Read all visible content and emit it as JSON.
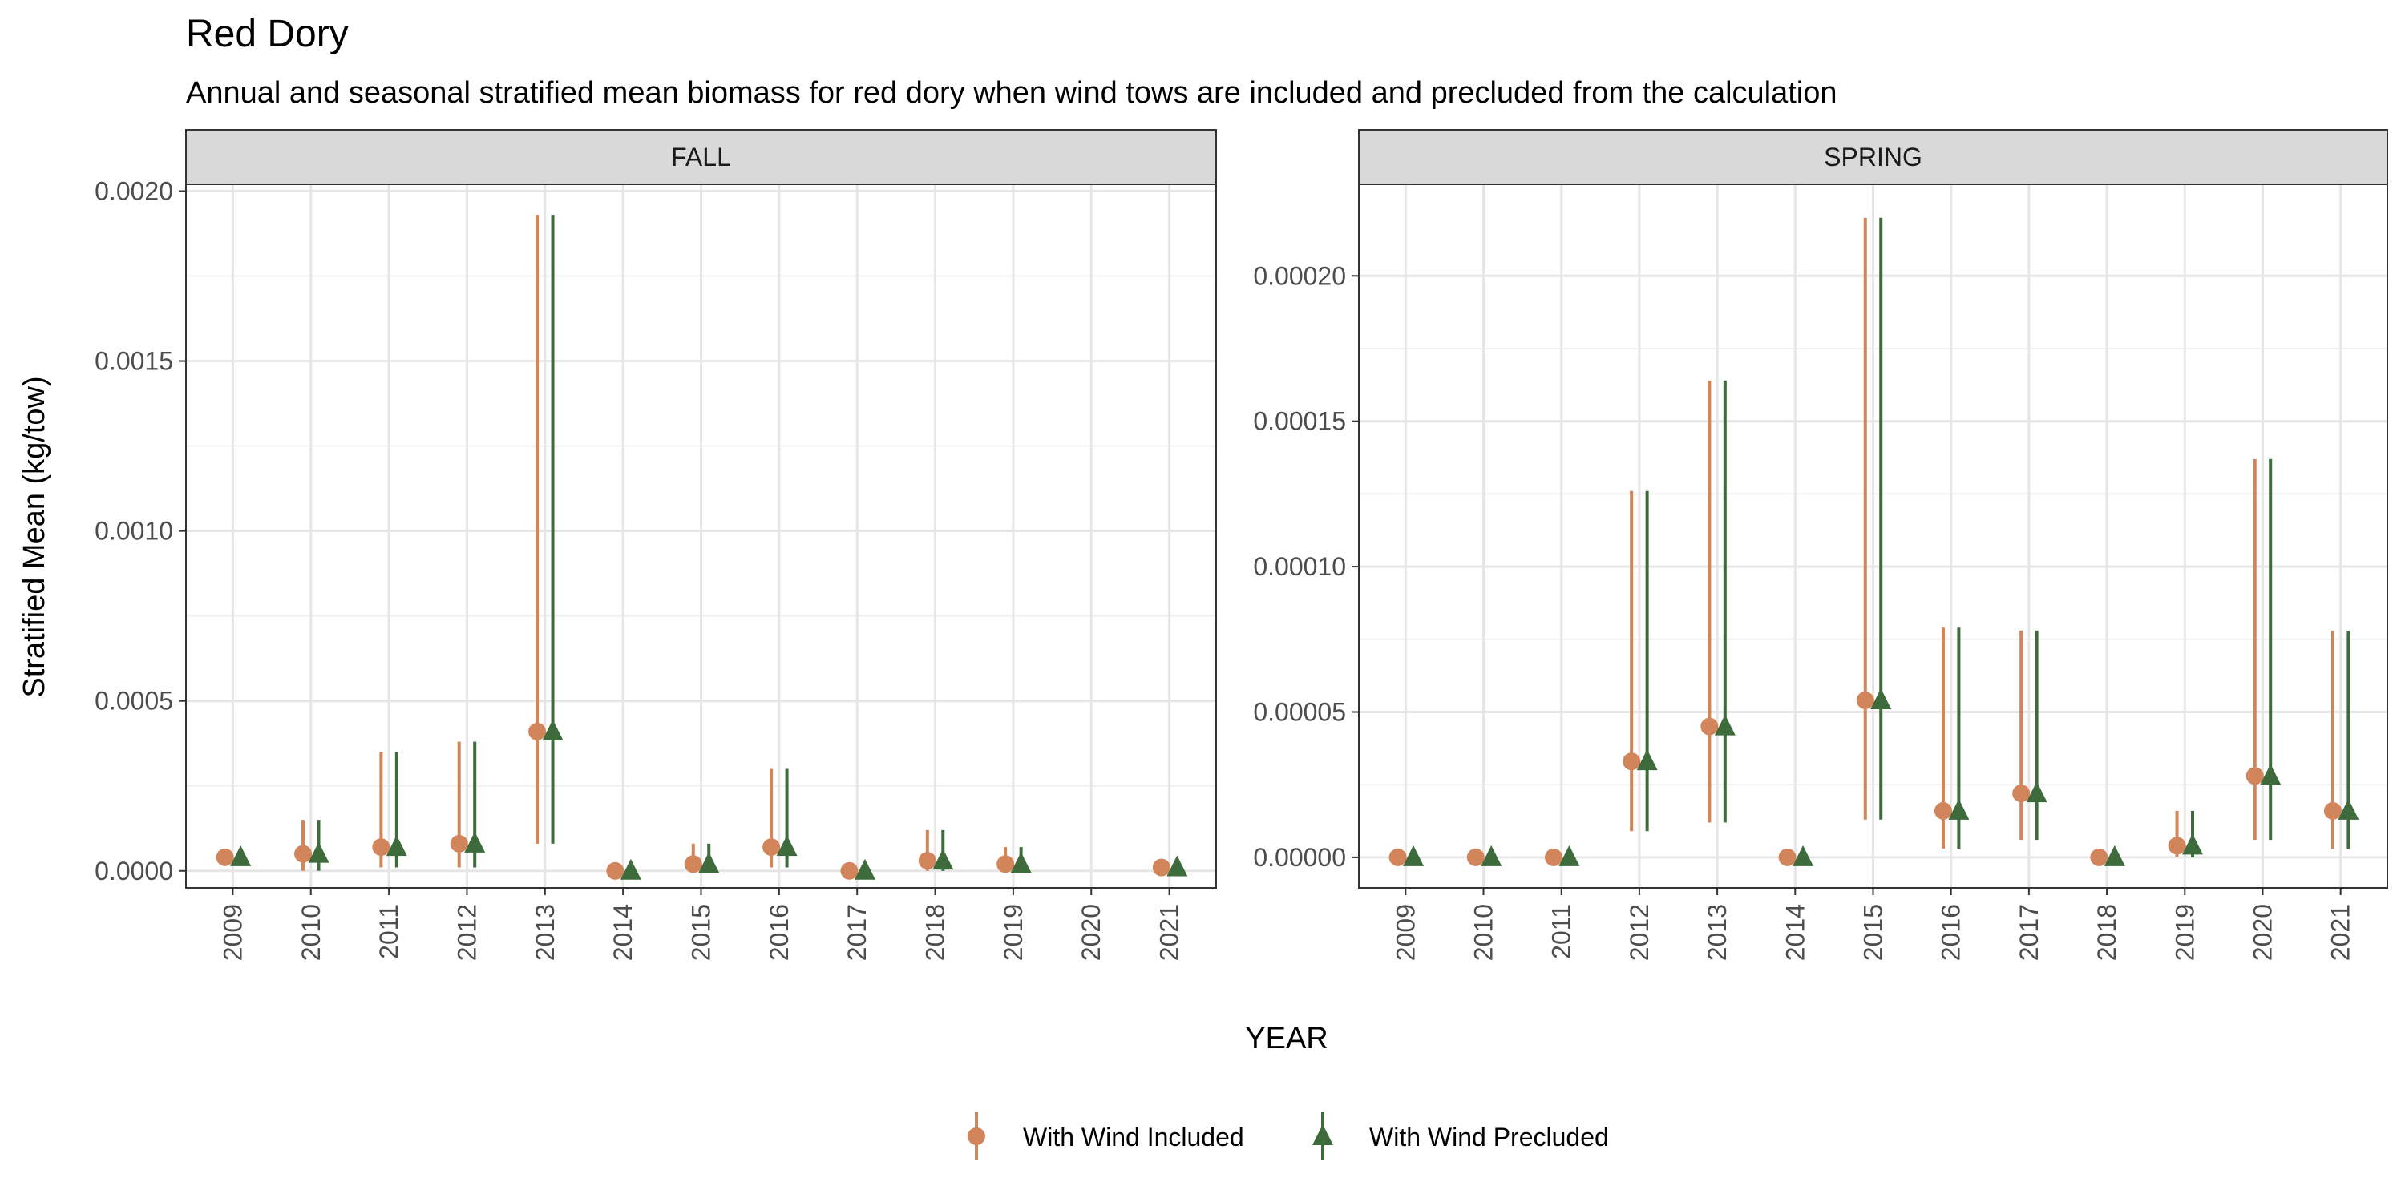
{
  "title": "Red Dory",
  "subtitle": "Annual and seasonal stratified mean biomass for red dory when wind tows are included and precluded from the calculation",
  "ylabel": "Stratified Mean (kg/tow)",
  "xlabel": "YEAR",
  "legend": {
    "position": "bottom",
    "items": [
      {
        "label": "With Wind Included",
        "color": "#D2845A",
        "shape": "circle"
      },
      {
        "label": "With Wind Precluded",
        "color": "#3E6B3C",
        "shape": "triangle"
      }
    ]
  },
  "chart_data": [
    {
      "type": "scatter",
      "panel": "FALL",
      "x": [
        "2009",
        "2010",
        "2011",
        "2012",
        "2013",
        "2014",
        "2015",
        "2016",
        "2017",
        "2018",
        "2019",
        "2020",
        "2021"
      ],
      "ylim": [
        -5e-05,
        0.00202
      ],
      "yticks": [
        0.0,
        0.0005,
        0.001,
        0.0015,
        0.002
      ],
      "ytick_labels": [
        "0.0000",
        "0.0005",
        "0.0010",
        "0.0015",
        "0.0020"
      ],
      "grid": true,
      "series": [
        {
          "name": "With Wind Included",
          "values": [
            4e-05,
            5e-05,
            7e-05,
            8e-05,
            0.00041,
            0.0,
            2e-05,
            7e-05,
            0.0,
            3e-05,
            2e-05,
            null,
            1e-05
          ],
          "lower": [
            3e-05,
            0.0,
            1e-05,
            1e-05,
            8e-05,
            0.0,
            0.0,
            1e-05,
            0.0,
            0.0,
            0.0,
            null,
            1e-05
          ],
          "upper": [
            4e-05,
            0.00015,
            0.00035,
            0.00038,
            0.00193,
            0.0,
            8e-05,
            0.0003,
            0.0,
            0.00012,
            7e-05,
            null,
            1e-05
          ]
        },
        {
          "name": "With Wind Precluded",
          "values": [
            4e-05,
            5e-05,
            7e-05,
            8e-05,
            0.00041,
            0.0,
            2e-05,
            7e-05,
            0.0,
            3e-05,
            2e-05,
            null,
            1e-05
          ],
          "lower": [
            3e-05,
            0.0,
            1e-05,
            1e-05,
            8e-05,
            0.0,
            0.0,
            1e-05,
            0.0,
            0.0,
            0.0,
            null,
            1e-05
          ],
          "upper": [
            4e-05,
            0.00015,
            0.00035,
            0.00038,
            0.00193,
            0.0,
            8e-05,
            0.0003,
            0.0,
            0.00012,
            7e-05,
            null,
            1e-05
          ]
        }
      ]
    },
    {
      "type": "scatter",
      "panel": "SPRING",
      "x": [
        "2009",
        "2010",
        "2011",
        "2012",
        "2013",
        "2014",
        "2015",
        "2016",
        "2017",
        "2018",
        "2019",
        "2020",
        "2021"
      ],
      "ylim": [
        -1.05e-05,
        0.0002315
      ],
      "yticks": [
        0.0,
        5e-05,
        0.0001,
        0.00015,
        0.0002
      ],
      "ytick_labels": [
        "0.00000",
        "0.00005",
        "0.00010",
        "0.00015",
        "0.00020"
      ],
      "grid": true,
      "series": [
        {
          "name": "With Wind Included",
          "values": [
            0.0,
            0.0,
            0.0,
            3.3e-05,
            4.5e-05,
            0.0,
            5.4e-05,
            1.6e-05,
            2.2e-05,
            0.0,
            4e-06,
            2.8e-05,
            1.6e-05
          ],
          "lower": [
            0.0,
            0.0,
            0.0,
            9e-06,
            1.2e-05,
            0.0,
            1.3e-05,
            3e-06,
            6e-06,
            0.0,
            0.0,
            6e-06,
            3e-06
          ],
          "upper": [
            0.0,
            0.0,
            0.0,
            0.000126,
            0.000164,
            0.0,
            0.00022,
            7.9e-05,
            7.8e-05,
            0.0,
            1.6e-05,
            0.000137,
            7.8e-05
          ]
        },
        {
          "name": "With Wind Precluded",
          "values": [
            0.0,
            0.0,
            0.0,
            3.3e-05,
            4.5e-05,
            0.0,
            5.4e-05,
            1.6e-05,
            2.2e-05,
            0.0,
            4e-06,
            2.8e-05,
            1.6e-05
          ],
          "lower": [
            0.0,
            0.0,
            0.0,
            9e-06,
            1.2e-05,
            0.0,
            1.3e-05,
            3e-06,
            6e-06,
            0.0,
            0.0,
            6e-06,
            3e-06
          ],
          "upper": [
            0.0,
            0.0,
            0.0,
            0.000126,
            0.000164,
            0.0,
            0.00022,
            7.9e-05,
            7.8e-05,
            0.0,
            1.6e-05,
            0.000137,
            7.8e-05
          ]
        }
      ]
    }
  ]
}
